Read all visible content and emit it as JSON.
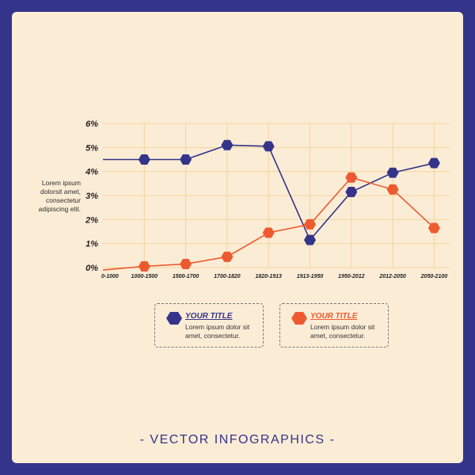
{
  "side_note": "Lorem ipsum dolorsit amet, consectetur adipiscing elit.",
  "footer": "- VECTOR INFOGRAPHICS -",
  "legend": [
    {
      "title": "YOUR TITLE",
      "text": "Lorem ipsum dolor sit amet, consectetur.",
      "color": "#34348a"
    },
    {
      "title": "YOUR TITLE",
      "text": "Lorem ipsum dolor sit amet, consectetur.",
      "color": "#ee5a2f"
    }
  ],
  "colors": {
    "blue": "#34348a",
    "orange": "#ee5a2f",
    "grid": "#f5d59a",
    "background": "#fbecd6",
    "frame": "#34348a"
  },
  "chart_data": {
    "type": "line",
    "categories": [
      "0-1000",
      "1000-1500",
      "1500-1700",
      "1700-1820",
      "1820-1913",
      "1913-1950",
      "1950-2012",
      "2012-2050",
      "2050-2100"
    ],
    "yticks": [
      "0%",
      "1%",
      "2%",
      "3%",
      "4%",
      "5%",
      "6%"
    ],
    "ylim": [
      0,
      6
    ],
    "grid": true,
    "series": [
      {
        "color": "#34348a",
        "values": [
          4.5,
          4.5,
          4.5,
          5.1,
          5.05,
          1.15,
          3.15,
          3.95,
          4.35
        ],
        "marker_from": 1
      },
      {
        "color": "#ee5a2f",
        "values": [
          -0.1,
          0.05,
          0.15,
          0.45,
          1.45,
          1.8,
          3.75,
          3.25,
          1.65
        ],
        "marker_from": 1
      }
    ]
  }
}
